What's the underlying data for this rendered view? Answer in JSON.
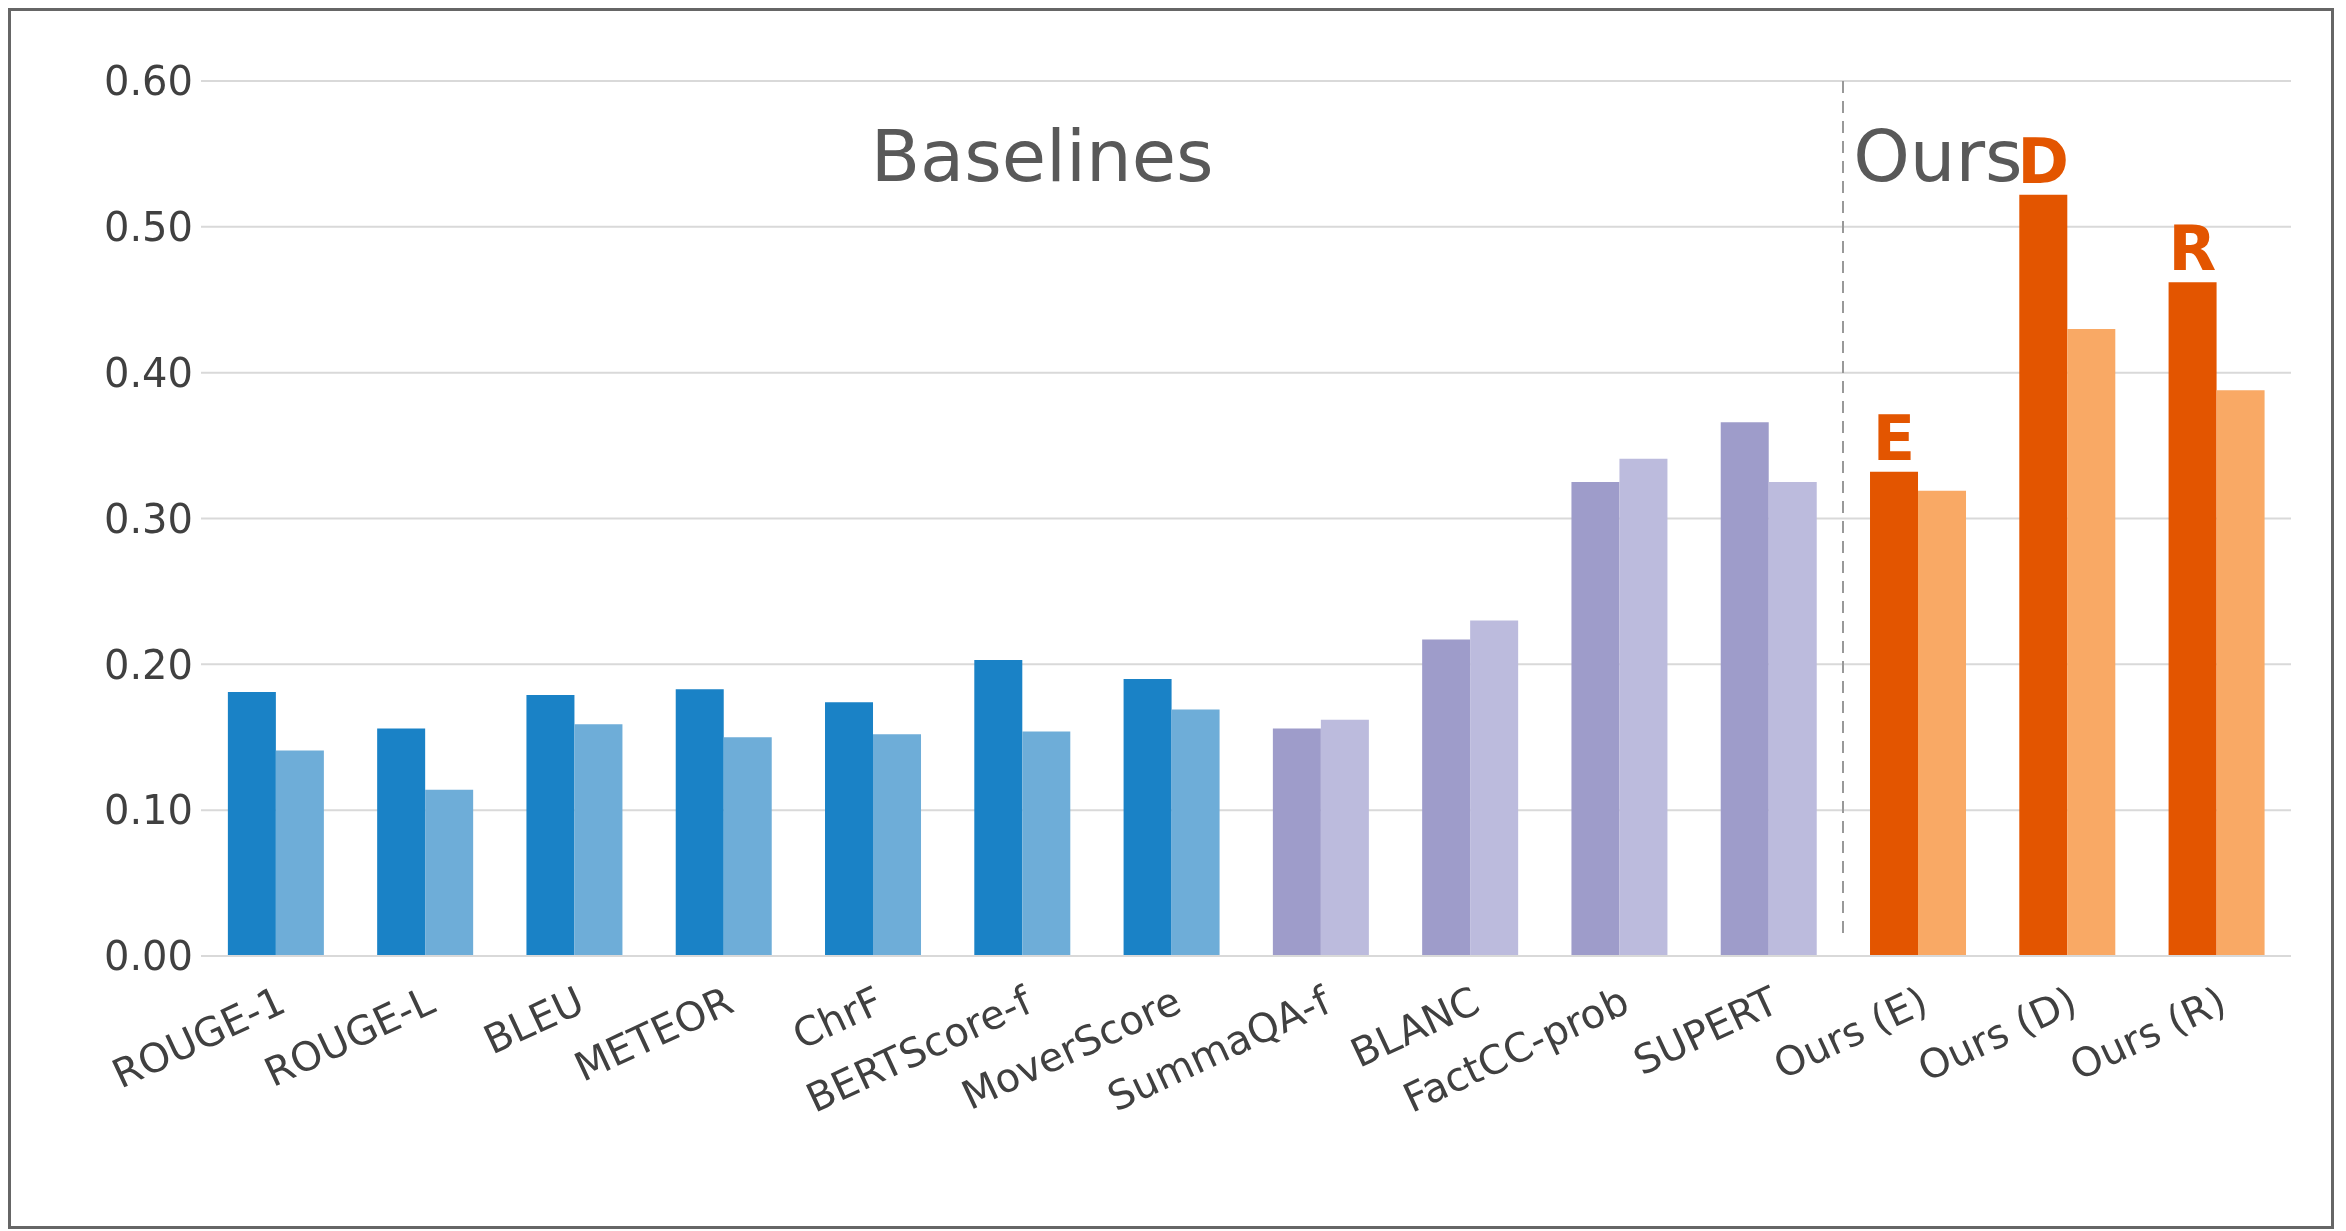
{
  "chart_data": {
    "type": "bar",
    "categories": [
      "ROUGE-1",
      "ROUGE-L",
      "BLEU",
      "METEOR",
      "ChrF",
      "BERTScore-f",
      "MoverScore",
      "SummaQA-f",
      "BLANC",
      "FactCC-prob",
      "SUPERT",
      "Ours (E)",
      "Ours (D)",
      "Ours (R)"
    ],
    "series": [
      {
        "values": [
          0.181,
          0.156,
          0.179,
          0.183,
          0.174,
          0.203,
          0.19,
          0.156,
          0.217,
          0.325,
          0.366,
          0.332,
          0.522,
          0.462
        ],
        "colors": [
          "#1a82c6",
          "#1a82c6",
          "#1a82c6",
          "#1a82c6",
          "#1a82c6",
          "#1a82c6",
          "#1a82c6",
          "#9e9cca",
          "#9e9cca",
          "#9e9cca",
          "#9e9cca",
          "#e35500",
          "#e35500",
          "#e35500"
        ]
      },
      {
        "values": [
          0.141,
          0.114,
          0.159,
          0.15,
          0.152,
          0.154,
          0.169,
          0.162,
          0.23,
          0.341,
          0.325,
          0.319,
          0.43,
          0.388
        ],
        "colors": [
          "#6eadd8",
          "#6eadd8",
          "#6eadd8",
          "#6eadd8",
          "#6eadd8",
          "#6eadd8",
          "#6eadd8",
          "#bcbbdd",
          "#bcbbdd",
          "#bcbbdd",
          "#bcbbdd",
          "#f9a965",
          "#f9a965",
          "#f9a965"
        ]
      }
    ],
    "ylim": [
      0,
      0.6
    ],
    "yticks": [
      {
        "value": 0,
        "label": "0.00"
      },
      {
        "value": 0.1,
        "label": "0.10"
      },
      {
        "value": 0.2,
        "label": "0.20"
      },
      {
        "value": 0.3,
        "label": "0.30"
      },
      {
        "value": 0.4,
        "label": "0.40"
      },
      {
        "value": 0.5,
        "label": "0.50"
      },
      {
        "value": 0.6,
        "label": "0.60"
      }
    ],
    "grid": "y",
    "legend": false,
    "annotations": [
      "Baselines",
      "Ours",
      "E",
      "D",
      "R"
    ]
  }
}
